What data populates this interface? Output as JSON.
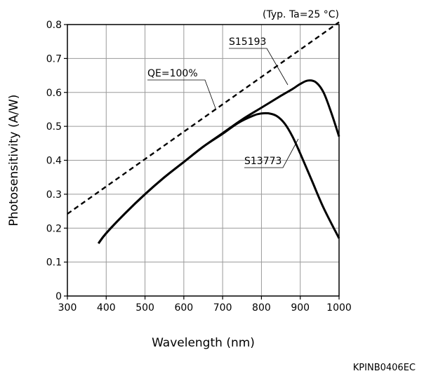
{
  "chart_data": {
    "type": "line",
    "title": "",
    "condition": "(Typ. Ta=25 °C)",
    "xlabel": "Wavelength (nm)",
    "ylabel": "Photosensitivity (A/W)",
    "xlim": [
      300,
      1000
    ],
    "ylim": [
      0,
      0.8
    ],
    "xticks": [
      300,
      400,
      500,
      600,
      700,
      800,
      900,
      1000
    ],
    "yticks": [
      0,
      0.1,
      0.2,
      0.3,
      0.4,
      0.5,
      0.6,
      0.7,
      0.8
    ],
    "ytick_labels": [
      "0",
      "0.1",
      "0.2",
      "0.3",
      "0.4",
      "0.5",
      "0.6",
      "0.7",
      "0.8"
    ],
    "grid": true,
    "series": [
      {
        "name": "QE=100%",
        "style": "dashed",
        "x": [
          300,
          1000
        ],
        "y": [
          0.242,
          0.807
        ]
      },
      {
        "name": "S15193",
        "style": "solid",
        "x": [
          380,
          400,
          450,
          500,
          550,
          600,
          650,
          700,
          750,
          800,
          850,
          880,
          900,
          920,
          940,
          960,
          980,
          1000
        ],
        "y": [
          0.155,
          0.185,
          0.245,
          0.3,
          0.35,
          0.395,
          0.44,
          0.48,
          0.52,
          0.555,
          0.59,
          0.61,
          0.625,
          0.635,
          0.63,
          0.6,
          0.54,
          0.47
        ]
      },
      {
        "name": "S13773",
        "style": "solid",
        "x": [
          380,
          400,
          450,
          500,
          550,
          600,
          650,
          700,
          740,
          780,
          800,
          820,
          840,
          860,
          880,
          900,
          930,
          960,
          1000
        ],
        "y": [
          0.155,
          0.185,
          0.245,
          0.3,
          0.35,
          0.395,
          0.44,
          0.478,
          0.51,
          0.532,
          0.538,
          0.538,
          0.53,
          0.508,
          0.47,
          0.42,
          0.34,
          0.26,
          0.17
        ]
      }
    ],
    "annotations": [
      {
        "text": "QE=100%",
        "series": "QE=100%"
      },
      {
        "text": "S15193",
        "series": "S15193"
      },
      {
        "text": "S13773",
        "series": "S13773"
      }
    ]
  },
  "figure_code": "KPINB0406EC"
}
